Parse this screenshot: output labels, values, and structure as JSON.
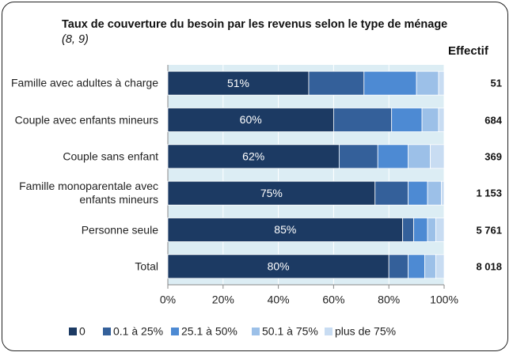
{
  "chart_data": {
    "type": "stacked-bar-horizontal",
    "title": "Taux de couverture du besoin par les revenus selon le type de ménage",
    "title_note": "(8, 9)",
    "categories": [
      "Famille avec adultes à charge",
      "Couple avec enfants mineurs",
      "Couple sans enfant",
      "Famille monoparentale avec enfants mineurs",
      "Personne seule",
      "Total"
    ],
    "series": [
      {
        "name": "0",
        "color": "#1c3a63",
        "values": [
          51,
          60,
          62,
          75,
          85,
          80
        ],
        "value_labels": [
          "51%",
          "60%",
          "62%",
          "75%",
          "85%",
          "80%"
        ]
      },
      {
        "name": "0.1 à 25%",
        "color": "#34609a",
        "values": [
          20,
          21,
          14,
          12,
          4,
          7
        ]
      },
      {
        "name": "25.1 à 50%",
        "color": "#4d8ad3",
        "values": [
          19,
          11,
          11,
          7,
          5,
          6
        ]
      },
      {
        "name": "50.1 à 75%",
        "color": "#9cc0e8",
        "values": [
          8,
          6,
          8,
          5,
          3,
          4
        ]
      },
      {
        "name": "plus de 75%",
        "color": "#c8dcf2",
        "values": [
          2,
          2,
          5,
          1,
          3,
          3
        ]
      }
    ],
    "effectif_title": "Effectif",
    "effectif": [
      "51",
      "684",
      "369",
      "1 153",
      "5 761",
      "8 018"
    ],
    "xlim": [
      0,
      100
    ],
    "xticks": [
      {
        "value": 0,
        "label": "0%"
      },
      {
        "value": 20,
        "label": "20%"
      },
      {
        "value": 40,
        "label": "40%"
      },
      {
        "value": 60,
        "label": "60%"
      },
      {
        "value": 80,
        "label": "80%"
      },
      {
        "value": 100,
        "label": "100%"
      }
    ],
    "grid": true,
    "legend": "bottom"
  }
}
